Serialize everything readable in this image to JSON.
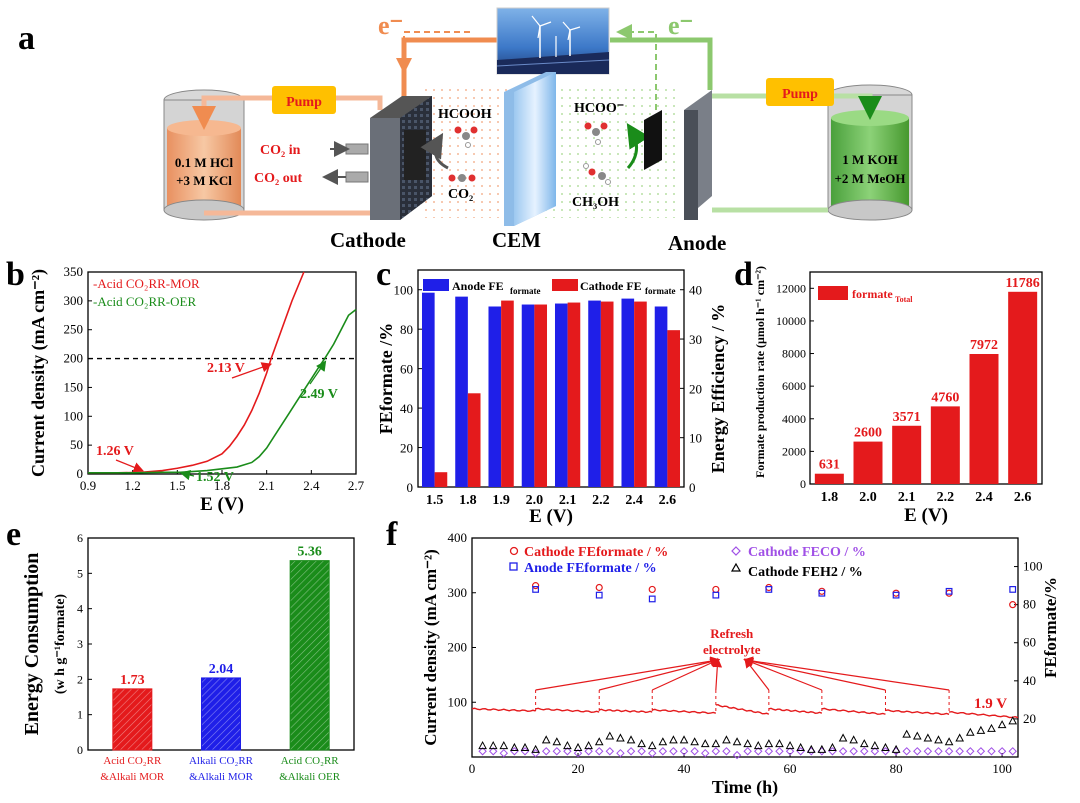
{
  "panel_letters": {
    "a": "a",
    "b": "b",
    "c": "c",
    "d": "d",
    "e": "e",
    "f": "f"
  },
  "colors": {
    "red": "#e41a1c",
    "green": "#1a8c1a",
    "blue": "#1f1fe8",
    "orange": "#f08c50",
    "lightgreen": "#8cc86e",
    "purple": "#a050e6"
  },
  "schematic": {
    "electron_left": "e⁻",
    "electron_right": "e⁻",
    "pump_left": "Pump",
    "pump_right": "Pump",
    "tank_left_line1": "0.1 M HCl",
    "tank_left_line2": "+3 M KCl",
    "tank_right_line1": "1 M KOH",
    "tank_right_line2": "+2 M MeOH",
    "co2_in": "CO₂ in",
    "co2_out": "CO₂ out",
    "hcooh": "HCOOH",
    "co2": "CO₂",
    "hcoo": "HCOO⁻",
    "ch3oh": "CH₃OH",
    "cathode": "Cathode",
    "cem": "CEM",
    "anode": "Anode"
  },
  "chart_data": [
    {
      "panel": "b",
      "type": "line",
      "xlabel": "E (V)",
      "ylabel": "Current density (mA cm⁻²)",
      "xlim": [
        0.9,
        2.7
      ],
      "ylim": [
        0,
        350
      ],
      "xticks": [
        "0.9",
        "1.2",
        "1.5",
        "1.8",
        "2.1",
        "2.4",
        "2.7"
      ],
      "yticks": [
        "0",
        "50",
        "100",
        "150",
        "200",
        "250",
        "300",
        "350"
      ],
      "legend": [
        "-Acid CO₂RR-MOR",
        "-Acid CO₂RR-OER"
      ],
      "series": [
        {
          "name": "-Acid CO₂RR-MOR",
          "color": "#e41a1c",
          "x": [
            0.9,
            1.1,
            1.26,
            1.4,
            1.5,
            1.6,
            1.7,
            1.8,
            1.85,
            1.9,
            1.95,
            2.0,
            2.05,
            2.1,
            2.13,
            2.2,
            2.27,
            2.35
          ],
          "y": [
            2,
            2,
            3,
            6,
            10,
            15,
            22,
            35,
            48,
            65,
            85,
            110,
            140,
            175,
            200,
            250,
            300,
            350
          ]
        },
        {
          "name": "-Acid CO₂RR-OER",
          "color": "#1a8c1a",
          "x": [
            0.9,
            1.2,
            1.4,
            1.52,
            1.7,
            1.9,
            2.0,
            2.05,
            2.1,
            2.15,
            2.2,
            2.25,
            2.3,
            2.35,
            2.4,
            2.45,
            2.49,
            2.55,
            2.6,
            2.65,
            2.7
          ],
          "y": [
            2,
            2,
            3,
            3,
            6,
            12,
            20,
            30,
            45,
            65,
            85,
            105,
            125,
            145,
            165,
            185,
            200,
            225,
            250,
            275,
            285
          ]
        }
      ],
      "reference_line": 200,
      "annotations": [
        "2.13 V",
        "1.26 V",
        "1.52 V",
        "2.49 V"
      ]
    },
    {
      "panel": "c",
      "type": "bar",
      "xlabel": "E (V)",
      "ylabel": "FEformate /%",
      "ylabel_right": "Energy Efficiency / %",
      "categories": [
        "1.5",
        "1.8",
        "1.9",
        "2.0",
        "2.1",
        "2.2",
        "2.4",
        "2.6"
      ],
      "ylim": [
        0,
        110
      ],
      "yticks": [
        "0",
        "20",
        "40",
        "60",
        "80",
        "100"
      ],
      "yticks_right": [
        "0",
        "10",
        "20",
        "30",
        "40"
      ],
      "series": [
        {
          "name": "Anode FEformate",
          "color": "#1f1fe8",
          "values": [
            98.5,
            96.5,
            91.5,
            92.5,
            93,
            94.5,
            95.5,
            91.5
          ]
        },
        {
          "name": "Cathode FEformate",
          "color": "#e41a1c",
          "values": [
            7.5,
            47.5,
            94.5,
            92.5,
            93.5,
            94,
            94,
            79.5
          ]
        }
      ],
      "legend": [
        "Anode FE",
        "formate",
        "Cathode FE",
        "formate"
      ]
    },
    {
      "panel": "d",
      "type": "bar",
      "xlabel": "E (V)",
      "ylabel": "Formate production rate (μmol h⁻¹ cm⁻²)",
      "categories": [
        "1.8",
        "2.0",
        "2.1",
        "2.2",
        "2.4",
        "2.6"
      ],
      "values": [
        631,
        2600,
        3571,
        4760,
        7972,
        11786
      ],
      "labels": [
        "631",
        "2600",
        "3571",
        "4760",
        "7972",
        "11786"
      ],
      "ylim": [
        0,
        13000
      ],
      "yticks": [
        "0",
        "2000",
        "4000",
        "6000",
        "8000",
        "10000",
        "12000"
      ],
      "legend": [
        "formate",
        "Total"
      ],
      "color": "#e41a1c"
    },
    {
      "panel": "e",
      "type": "bar",
      "ylabel": "Energy Consumption",
      "ylabel2": "(w h g⁻¹formate)",
      "categories": [
        "Acid CO₂RR &Alkali MOR",
        "Alkali CO₂RR &Alkali MOR",
        "Acid CO₂RR &Alkali OER"
      ],
      "category_lines": [
        [
          "Acid CO₂RR",
          "&Alkali  MOR"
        ],
        [
          "Alkali CO₂RR",
          "&Alkali MOR"
        ],
        [
          "Acid CO₂RR",
          "&Alkali  OER"
        ]
      ],
      "values": [
        1.73,
        2.04,
        5.36
      ],
      "labels": [
        "1.73",
        "2.04",
        "5.36"
      ],
      "colors": [
        "#e41a1c",
        "#1f1fe8",
        "#1a8c1a"
      ],
      "ylim": [
        0,
        6
      ],
      "yticks": [
        "0",
        "1",
        "2",
        "3",
        "4",
        "5",
        "6"
      ]
    },
    {
      "panel": "f",
      "type": "scatter",
      "xlabel": "Time (h)",
      "ylabel": "Current density (mA cm⁻²)",
      "ylabel_right": "FEformate/%",
      "xlim": [
        0,
        103
      ],
      "ylim": [
        0,
        400
      ],
      "ylim_right": [
        0,
        115
      ],
      "xticks": [
        "0",
        "20",
        "40",
        "60",
        "80",
        "100"
      ],
      "yticks": [
        "100",
        "200",
        "300",
        "400"
      ],
      "yticks_right": [
        "20",
        "40",
        "60",
        "80",
        "100"
      ],
      "legend": [
        "Cathode FEformate / %",
        "Anode FEformate / %",
        "Cathode FECO / %",
        "Cathode FEH2 / %"
      ],
      "annotation": [
        "Refresh",
        "electrolyte"
      ],
      "voltage_label": "1.9 V",
      "refresh_times": [
        12,
        24,
        34,
        46,
        56,
        66,
        78,
        90
      ],
      "current_segments": [
        {
          "x": [
            0,
            12
          ],
          "y": [
            88,
            84
          ]
        },
        {
          "x": [
            12,
            24
          ],
          "y": [
            88,
            82
          ]
        },
        {
          "x": [
            24,
            34
          ],
          "y": [
            86,
            82
          ]
        },
        {
          "x": [
            34,
            46
          ],
          "y": [
            86,
            80
          ]
        },
        {
          "x": [
            46,
            56
          ],
          "y": [
            95,
            78
          ]
        },
        {
          "x": [
            56,
            66
          ],
          "y": [
            88,
            80
          ]
        },
        {
          "x": [
            66,
            78
          ],
          "y": [
            88,
            78
          ]
        },
        {
          "x": [
            78,
            90
          ],
          "y": [
            85,
            78
          ]
        },
        {
          "x": [
            90,
            103
          ],
          "y": [
            82,
            72
          ]
        }
      ],
      "cathode_fe_formate": {
        "x": [
          12,
          24,
          34,
          46,
          56,
          66,
          80,
          90,
          102
        ],
        "y": [
          90,
          89,
          88,
          88,
          89,
          87,
          86,
          86,
          80
        ]
      },
      "anode_fe_formate": {
        "x": [
          12,
          24,
          34,
          46,
          56,
          66,
          80,
          90,
          102
        ],
        "y": [
          88,
          85,
          83,
          85,
          88,
          86,
          85,
          87,
          88
        ]
      },
      "cathode_fe_co": {
        "x": [
          2,
          4,
          6,
          8,
          10,
          12,
          14,
          16,
          18,
          20,
          22,
          24,
          26,
          28,
          30,
          32,
          34,
          36,
          38,
          40,
          42,
          44,
          46,
          48,
          50,
          52,
          54,
          56,
          58,
          60,
          62,
          64,
          66,
          68,
          70,
          72,
          74,
          76,
          78,
          80,
          82,
          84,
          86,
          88,
          90,
          92,
          94,
          96,
          98,
          100,
          102
        ],
        "y": [
          3,
          3,
          2,
          3,
          3,
          2,
          3,
          3,
          3,
          2,
          3,
          3,
          3,
          2,
          3,
          3,
          2,
          3,
          3,
          3,
          3,
          2,
          3,
          3,
          1,
          3,
          3,
          3,
          3,
          3,
          3,
          3,
          3,
          3,
          3,
          3,
          3,
          3,
          3,
          3,
          3,
          3,
          3,
          3,
          3,
          3,
          3,
          3,
          3,
          3,
          3
        ]
      },
      "cathode_fe_h2": {
        "x": [
          2,
          4,
          6,
          8,
          10,
          12,
          14,
          16,
          18,
          20,
          22,
          24,
          26,
          28,
          30,
          32,
          34,
          36,
          38,
          40,
          42,
          44,
          46,
          48,
          50,
          52,
          54,
          56,
          58,
          60,
          62,
          64,
          66,
          68,
          70,
          72,
          74,
          76,
          78,
          80,
          82,
          84,
          86,
          88,
          90,
          92,
          94,
          96,
          98,
          100,
          102
        ],
        "y": [
          6,
          6,
          6,
          5,
          5,
          4,
          9,
          8,
          6,
          5,
          6,
          8,
          11,
          10,
          9,
          7,
          6,
          8,
          9,
          9,
          8,
          7,
          7,
          9,
          8,
          7,
          6,
          7,
          7,
          6,
          5,
          4,
          4,
          5,
          10,
          9,
          7,
          6,
          5,
          4,
          12,
          11,
          10,
          9,
          8,
          10,
          13,
          14,
          15,
          17,
          19
        ]
      }
    }
  ]
}
